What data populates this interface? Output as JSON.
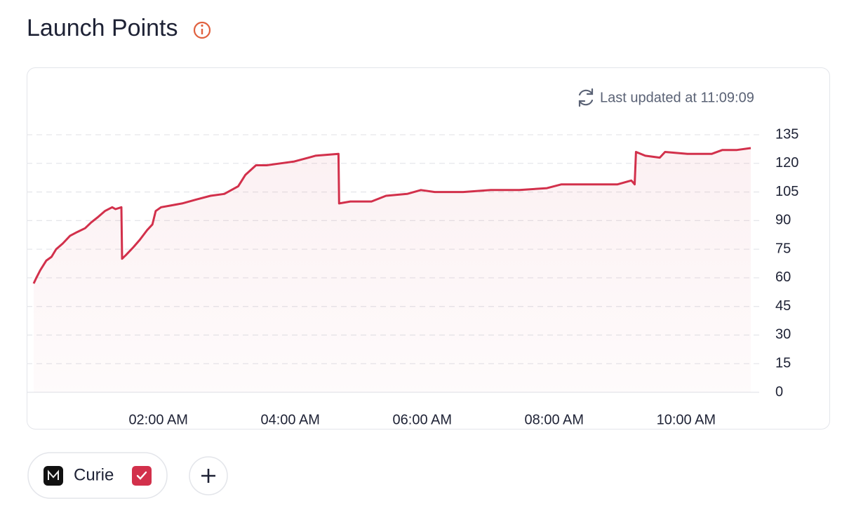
{
  "title": "Launch Points",
  "chart_data": {
    "type": "line",
    "last_updated": "Last updated at 11:09:09",
    "x": [
      0.11,
      0.15,
      0.21,
      0.3,
      0.38,
      0.45,
      0.55,
      0.66,
      0.77,
      0.89,
      0.98,
      1.09,
      1.19,
      1.3,
      1.35,
      1.44,
      1.45,
      1.51,
      1.62,
      1.72,
      1.83,
      1.91,
      1.96,
      2.04,
      2.2,
      2.36,
      2.57,
      2.79,
      3.0,
      3.21,
      3.32,
      3.48,
      3.64,
      3.85,
      4.06,
      4.28,
      4.38,
      4.73,
      4.74,
      4.91,
      5.23,
      5.45,
      5.77,
      5.98,
      6.19,
      6.62,
      7.04,
      7.47,
      7.89,
      8.11,
      8.96,
      9.17,
      9.22,
      9.24,
      9.38,
      9.6,
      9.68,
      10.02,
      10.39,
      10.55,
      10.77,
      10.98
    ],
    "series": [
      {
        "name": "Curie",
        "color": "#d2304b",
        "values": [
          57,
          60,
          64,
          69,
          71,
          75,
          78,
          82,
          84,
          86,
          89,
          92,
          95,
          97,
          96,
          97,
          70,
          72,
          76,
          80,
          85,
          88,
          95,
          97,
          98,
          99,
          101,
          103,
          104,
          108,
          114,
          119,
          119,
          120,
          121,
          123,
          124,
          125,
          99,
          100,
          100,
          103,
          104,
          106,
          105,
          105,
          106,
          106,
          107,
          109,
          109,
          111,
          109,
          126,
          124,
          123,
          126,
          125,
          125,
          127,
          127,
          128
        ]
      }
    ],
    "xlim": [
      0.11,
      10.98
    ],
    "xticks": [
      {
        "value": 2,
        "label": "02:00 AM"
      },
      {
        "value": 4,
        "label": "04:00 AM"
      },
      {
        "value": 6,
        "label": "06:00 AM"
      },
      {
        "value": 8,
        "label": "08:00 AM"
      },
      {
        "value": 10,
        "label": "10:00 AM"
      }
    ],
    "ylim": [
      0,
      135
    ],
    "yticks": [
      0,
      15,
      30,
      45,
      60,
      75,
      90,
      105,
      120,
      135
    ],
    "grid": true
  }
}
